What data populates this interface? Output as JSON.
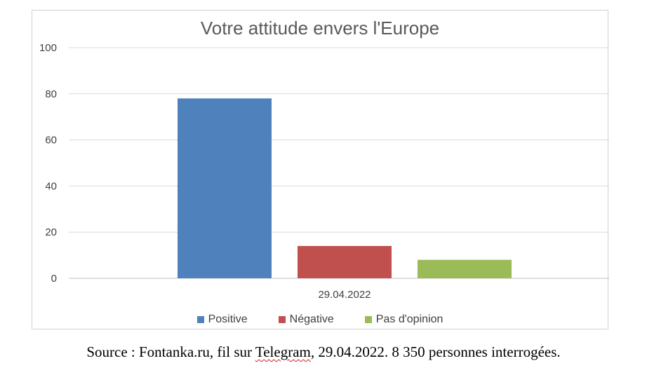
{
  "chart_data": {
    "type": "bar",
    "title": "Votre attitude envers l'Europe",
    "categories": [
      "29.04.2022"
    ],
    "series": [
      {
        "name": "Positive",
        "values": [
          78
        ],
        "color": "#4f81bd"
      },
      {
        "name": "Négative",
        "values": [
          14
        ],
        "color": "#c0504d"
      },
      {
        "name": "Pas d'opinion",
        "values": [
          8
        ],
        "color": "#9bbb59"
      }
    ],
    "yticks": [
      "0",
      "20",
      "40",
      "60",
      "80",
      "100"
    ],
    "ylim": [
      0,
      100
    ],
    "grid": true,
    "legend_position": "bottom"
  },
  "source": {
    "prefix": "Source : Fontanka.ru, fil sur ",
    "telegram": "Telegram",
    "suffix": ", 29.04.2022. 8 350 personnes interrogées."
  }
}
